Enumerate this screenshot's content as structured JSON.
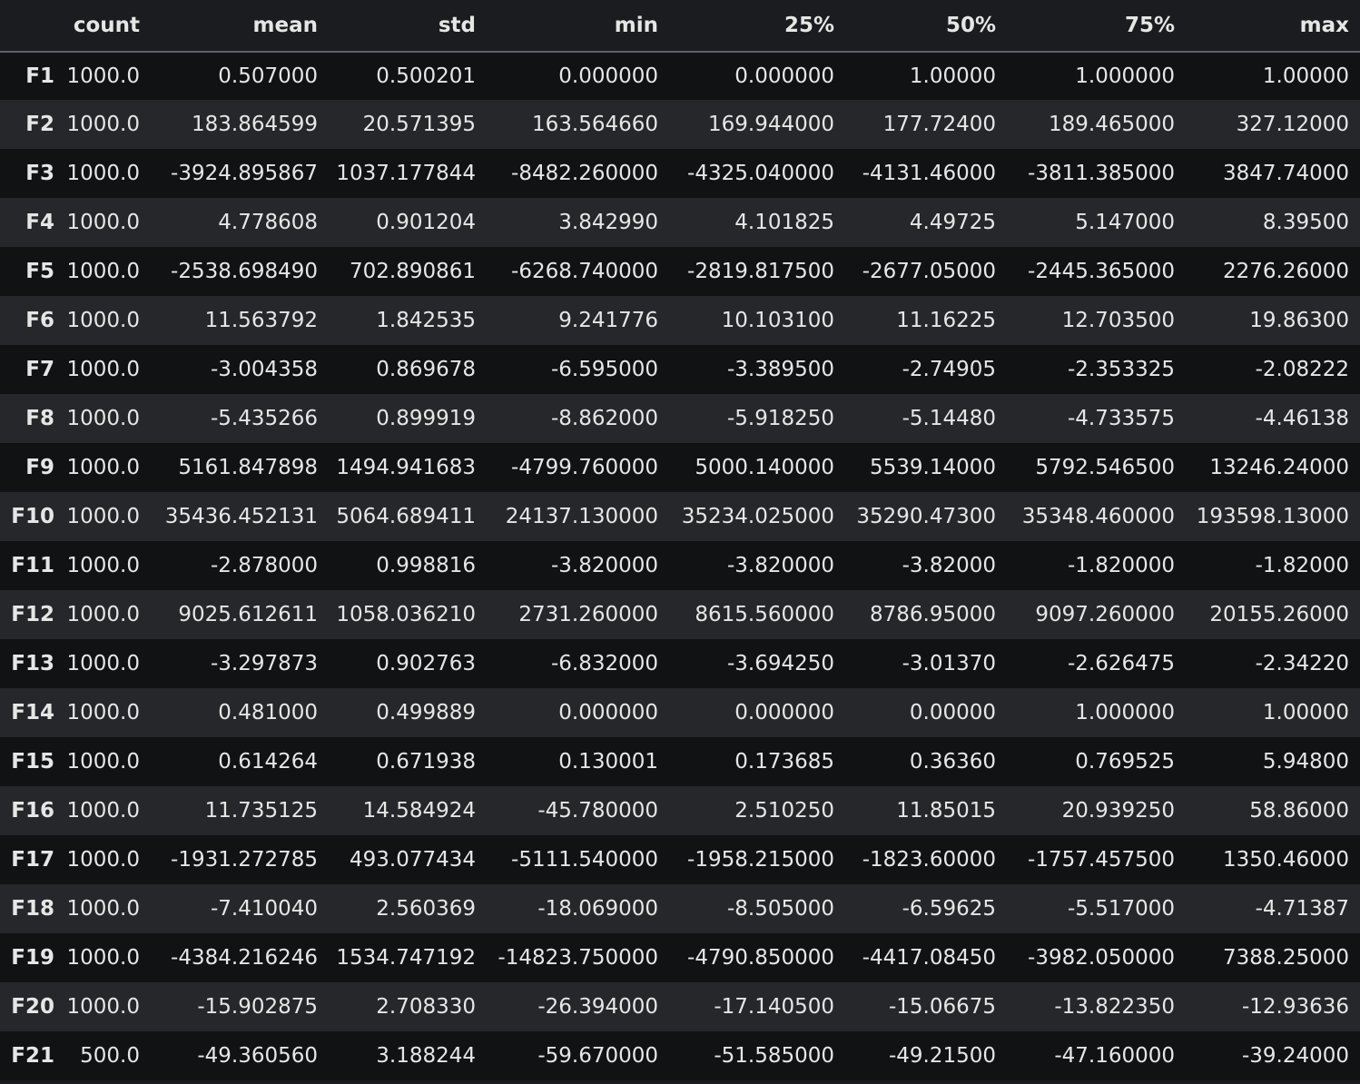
{
  "columns": [
    "",
    "count",
    "mean",
    "std",
    "min",
    "25%",
    "50%",
    "75%",
    "max"
  ],
  "rows": [
    {
      "index": "F1",
      "values": [
        "1000.0",
        "0.507000",
        "0.500201",
        "0.000000",
        "0.000000",
        "1.00000",
        "1.000000",
        "1.00000"
      ]
    },
    {
      "index": "F2",
      "values": [
        "1000.0",
        "183.864599",
        "20.571395",
        "163.564660",
        "169.944000",
        "177.72400",
        "189.465000",
        "327.12000"
      ]
    },
    {
      "index": "F3",
      "values": [
        "1000.0",
        "-3924.895867",
        "1037.177844",
        "-8482.260000",
        "-4325.040000",
        "-4131.46000",
        "-3811.385000",
        "3847.74000"
      ]
    },
    {
      "index": "F4",
      "values": [
        "1000.0",
        "4.778608",
        "0.901204",
        "3.842990",
        "4.101825",
        "4.49725",
        "5.147000",
        "8.39500"
      ]
    },
    {
      "index": "F5",
      "values": [
        "1000.0",
        "-2538.698490",
        "702.890861",
        "-6268.740000",
        "-2819.817500",
        "-2677.05000",
        "-2445.365000",
        "2276.26000"
      ]
    },
    {
      "index": "F6",
      "values": [
        "1000.0",
        "11.563792",
        "1.842535",
        "9.241776",
        "10.103100",
        "11.16225",
        "12.703500",
        "19.86300"
      ]
    },
    {
      "index": "F7",
      "values": [
        "1000.0",
        "-3.004358",
        "0.869678",
        "-6.595000",
        "-3.389500",
        "-2.74905",
        "-2.353325",
        "-2.08222"
      ]
    },
    {
      "index": "F8",
      "values": [
        "1000.0",
        "-5.435266",
        "0.899919",
        "-8.862000",
        "-5.918250",
        "-5.14480",
        "-4.733575",
        "-4.46138"
      ]
    },
    {
      "index": "F9",
      "values": [
        "1000.0",
        "5161.847898",
        "1494.941683",
        "-4799.760000",
        "5000.140000",
        "5539.14000",
        "5792.546500",
        "13246.24000"
      ]
    },
    {
      "index": "F10",
      "values": [
        "1000.0",
        "35436.452131",
        "5064.689411",
        "24137.130000",
        "35234.025000",
        "35290.47300",
        "35348.460000",
        "193598.13000"
      ]
    },
    {
      "index": "F11",
      "values": [
        "1000.0",
        "-2.878000",
        "0.998816",
        "-3.820000",
        "-3.820000",
        "-3.82000",
        "-1.820000",
        "-1.82000"
      ]
    },
    {
      "index": "F12",
      "values": [
        "1000.0",
        "9025.612611",
        "1058.036210",
        "2731.260000",
        "8615.560000",
        "8786.95000",
        "9097.260000",
        "20155.26000"
      ]
    },
    {
      "index": "F13",
      "values": [
        "1000.0",
        "-3.297873",
        "0.902763",
        "-6.832000",
        "-3.694250",
        "-3.01370",
        "-2.626475",
        "-2.34220"
      ]
    },
    {
      "index": "F14",
      "values": [
        "1000.0",
        "0.481000",
        "0.499889",
        "0.000000",
        "0.000000",
        "0.00000",
        "1.000000",
        "1.00000"
      ]
    },
    {
      "index": "F15",
      "values": [
        "1000.0",
        "0.614264",
        "0.671938",
        "0.130001",
        "0.173685",
        "0.36360",
        "0.769525",
        "5.94800"
      ]
    },
    {
      "index": "F16",
      "values": [
        "1000.0",
        "11.735125",
        "14.584924",
        "-45.780000",
        "2.510250",
        "11.85015",
        "20.939250",
        "58.86000"
      ]
    },
    {
      "index": "F17",
      "values": [
        "1000.0",
        "-1931.272785",
        "493.077434",
        "-5111.540000",
        "-1958.215000",
        "-1823.60000",
        "-1757.457500",
        "1350.46000"
      ]
    },
    {
      "index": "F18",
      "values": [
        "1000.0",
        "-7.410040",
        "2.560369",
        "-18.069000",
        "-8.505000",
        "-6.59625",
        "-5.517000",
        "-4.71387"
      ]
    },
    {
      "index": "F19",
      "values": [
        "1000.0",
        "-4384.216246",
        "1534.747192",
        "-14823.750000",
        "-4790.850000",
        "-4417.08450",
        "-3982.050000",
        "7388.25000"
      ]
    },
    {
      "index": "F20",
      "values": [
        "1000.0",
        "-15.902875",
        "2.708330",
        "-26.394000",
        "-17.140500",
        "-15.06675",
        "-13.822350",
        "-12.93636"
      ]
    },
    {
      "index": "F21",
      "values": [
        "500.0",
        "-49.360560",
        "3.188244",
        "-59.670000",
        "-51.585000",
        "-49.21500",
        "-47.160000",
        "-39.24000"
      ]
    }
  ]
}
